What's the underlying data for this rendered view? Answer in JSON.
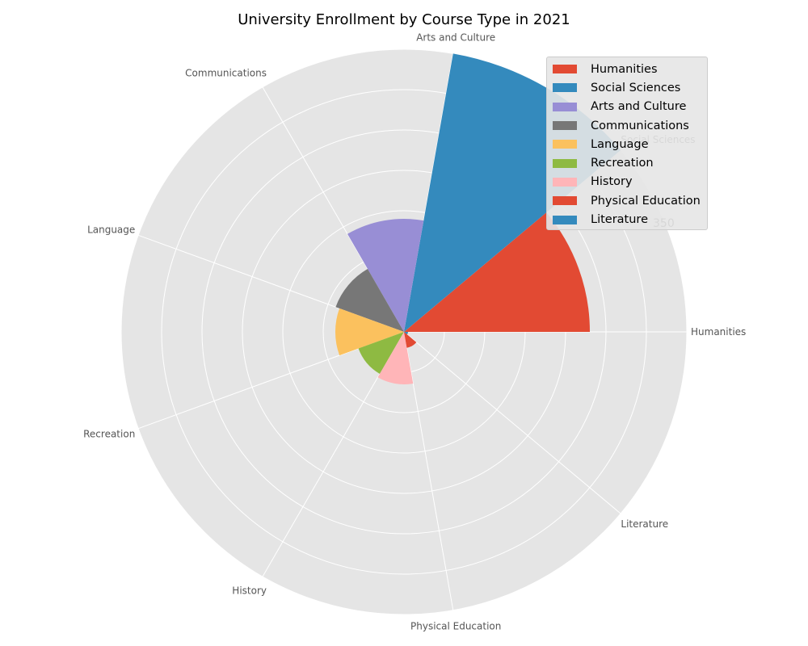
{
  "chart_data": {
    "type": "polar-bar",
    "title": "University Enrollment by Course Type in 2021",
    "categories": [
      "Humanities",
      "Social Sciences",
      "Arts and Culture",
      "Communications",
      "Language",
      "Recreation",
      "History",
      "Physical Education",
      "Literature"
    ],
    "values": [
      230,
      350,
      140,
      90,
      85,
      60,
      65,
      20,
      5
    ],
    "colors": [
      "#E24A33",
      "#348ABD",
      "#988ED5",
      "#777777",
      "#FBC15E",
      "#8EBA42",
      "#FFB5B8",
      "#E24A33",
      "#348ABD"
    ],
    "radial_tick_labels": [
      "350"
    ],
    "rmax": 350,
    "grid": true,
    "legend_position": "upper-right"
  }
}
